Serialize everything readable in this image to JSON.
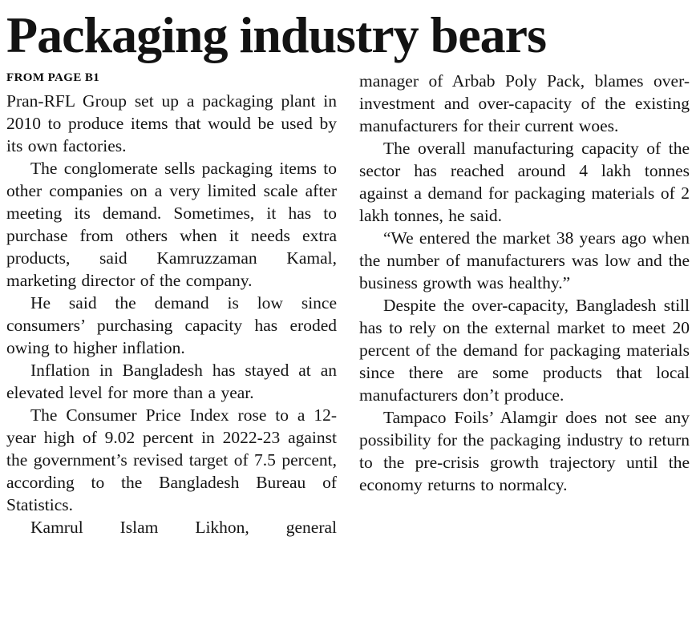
{
  "article": {
    "headline": "Packaging industry bears",
    "kicker": "FROM PAGE B1",
    "left_paragraphs": [
      "Pran-RFL Group set up a packaging plant in 2010 to produce items that would be used by its own factories.",
      "The conglomerate sells packaging items to other companies on a very limited scale after meeting its demand. Sometimes, it has to purchase from others when it needs extra products, said Kamruzzaman Kamal, marketing director of the company.",
      "He said the demand is low since consumers’ purchasing capacity has eroded owing to higher inflation.",
      "Inflation in Bangladesh has stayed at an elevated level for more than a year.",
      "The Consumer Price Index rose to a 12-year high of 9.02 percent in 2022-23 against the government’s revised target of 7.5 percent, according to the Bangladesh Bureau of Statistics.",
      "Kamrul Islam Likhon, general"
    ],
    "right_paragraphs": [
      "manager of Arbab Poly Pack, blames over-investment and over-capacity of the existing manufacturers for their current woes.",
      "The overall manufacturing capacity of the sector has reached around 4 lakh tonnes against a demand for packaging materials of 2 lakh tonnes, he said.",
      "“We entered the market 38 years ago when the number of manufacturers was low and the business growth was healthy.”",
      "Despite the over-capacity, Bangladesh still has to rely on the external market to meet 20 percent of the demand for packaging materials since there are some products that local manufacturers don’t produce.",
      "Tampaco Foils’ Alamgir does not see any possibility for the packaging industry to return to the pre-crisis growth trajectory until the economy returns to normalcy."
    ]
  }
}
